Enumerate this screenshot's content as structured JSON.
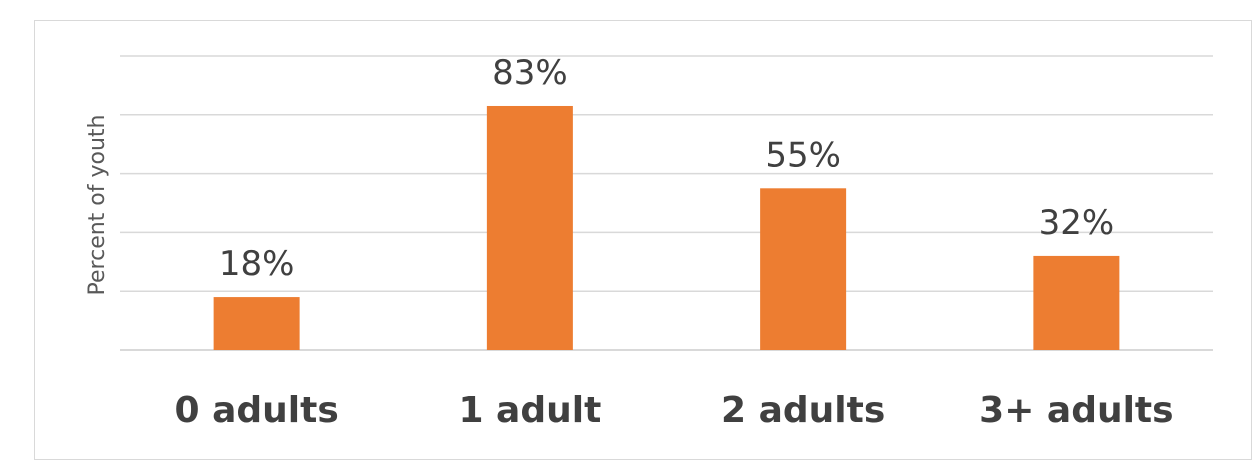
{
  "chart_data": {
    "type": "bar",
    "title": "",
    "xlabel": "",
    "ylabel": "Percent of youth",
    "categories": [
      "0 adults",
      "1 adult",
      "2 adults",
      "3+ adults"
    ],
    "values": [
      18,
      83,
      55,
      32
    ],
    "data_labels": [
      "18%",
      "83%",
      "55%",
      "32%"
    ],
    "ylim": [
      0,
      100
    ],
    "grid": true,
    "bar_color": "#ed7d31",
    "legend": "none"
  }
}
